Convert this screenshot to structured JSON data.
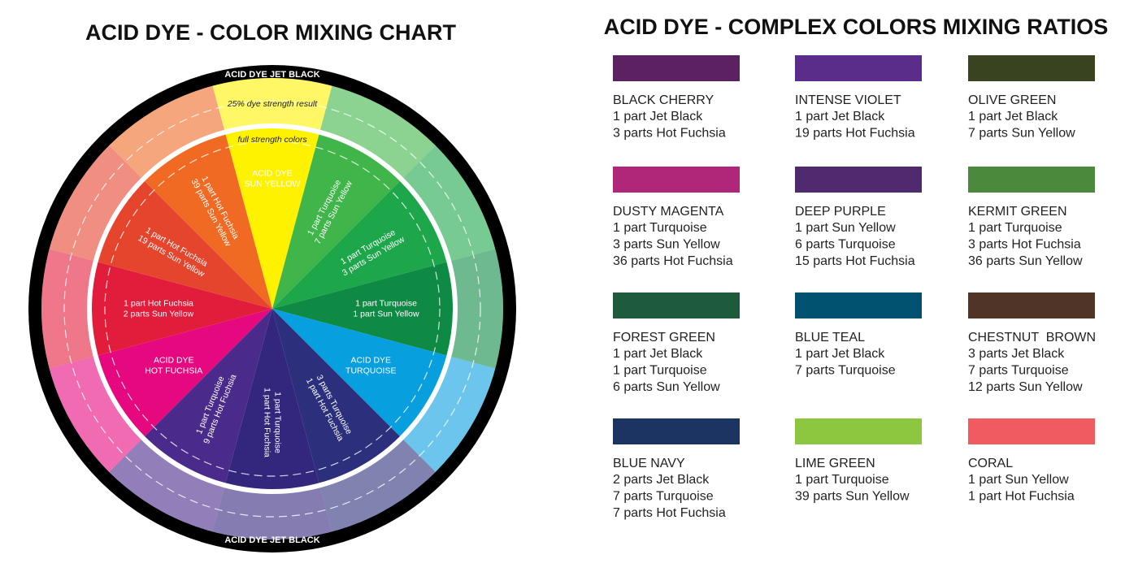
{
  "wheel": {
    "title": "ACID DYE - COLOR MIXING CHART",
    "ring_top": "ACID DYE JET BLACK",
    "ring_bottom": "ACID DYE JET BLACK",
    "outer_note": "25% dye strength result",
    "inner_note": "full strength colors",
    "segments": [
      {
        "lines": [
          "ACID DYE",
          "SUN YELLOW"
        ],
        "color": "#fff200"
      },
      {
        "lines": [
          "1 part Turquoise",
          "7 parts Sun Yellow"
        ],
        "color": "#3fb54a"
      },
      {
        "lines": [
          "1 part Turquoise",
          "3 parts Sun Yellow"
        ],
        "color": "#1da64a"
      },
      {
        "lines": [
          "1 part Turquoise",
          "1 part Sun Yellow"
        ],
        "color": "#0e8a45"
      },
      {
        "lines": [
          "ACID DYE",
          "TURQUOISE"
        ],
        "color": "#089fdf"
      },
      {
        "lines": [
          "3 parts Turquoise",
          "1 part Hot Fuchsia"
        ],
        "color": "#2b2f7c"
      },
      {
        "lines": [
          "1 part Turquoise",
          "1 part Hot Fuchsia"
        ],
        "color": "#33277d"
      },
      {
        "lines": [
          "1 part Turquoise",
          "9 parts Hot Fuchsia"
        ],
        "color": "#4a2a8b"
      },
      {
        "lines": [
          "ACID DYE",
          "HOT FUCHSIA"
        ],
        "color": "#e6087f"
      },
      {
        "lines": [
          "1 part Hot Fuchsia",
          "2 parts Sun Yellow"
        ],
        "color": "#e21d3b"
      },
      {
        "lines": [
          "1 part Hot Fuchsia",
          "19 parts Sun Yellow"
        ],
        "color": "#e6452d"
      },
      {
        "lines": [
          "1 part Hot Fuchsia",
          "39 parts Sun Yellow"
        ],
        "color": "#f06a24"
      }
    ]
  },
  "ratios": {
    "title": "ACID DYE - COMPLEX COLORS MIXING RATIOS",
    "items": [
      {
        "name": "BLACK CHERRY",
        "color": "#5c2160",
        "lines": [
          "1 part Jet Black",
          "3 parts Hot Fuchsia"
        ]
      },
      {
        "name": "INTENSE VIOLET",
        "color": "#5b2d8a",
        "lines": [
          "1 part Jet Black",
          "19 parts Hot Fuchsia"
        ]
      },
      {
        "name": "OLIVE GREEN",
        "color": "#3a4320",
        "lines": [
          "1 part Jet Black",
          "7 parts Sun Yellow"
        ]
      },
      {
        "name": "DUSTY MAGENTA",
        "color": "#b02678",
        "lines": [
          "1 part Turquoise",
          "3 parts Sun Yellow",
          "36 parts Hot Fuchsia"
        ]
      },
      {
        "name": "DEEP PURPLE",
        "color": "#502a6e",
        "lines": [
          "1 part Sun Yellow",
          "6 parts Turquoise",
          "15 parts Hot Fuchsia"
        ]
      },
      {
        "name": "KERMIT GREEN",
        "color": "#4b8a3c",
        "lines": [
          "1 part Turquoise",
          "3 parts Hot Fuchsia",
          "36 parts Sun Yellow"
        ]
      },
      {
        "name": "FOREST GREEN",
        "color": "#1e5a3c",
        "lines": [
          "1 part Jet Black",
          "1 part Turquoise",
          "6 parts Sun Yellow"
        ]
      },
      {
        "name": "BLUE TEAL",
        "color": "#005270",
        "lines": [
          "1 part Jet Black",
          "7 parts Turquoise"
        ]
      },
      {
        "name": "CHESTNUT  BROWN",
        "color": "#4f3427",
        "lines": [
          "3 parts Jet Black",
          "7 parts Turquoise",
          "12 parts Sun Yellow"
        ]
      },
      {
        "name": "BLUE NAVY",
        "color": "#1c3462",
        "lines": [
          "2 parts Jet Black",
          "7 parts Turquoise",
          "7 parts Hot Fuchsia"
        ]
      },
      {
        "name": "LIME GREEN",
        "color": "#8dc63f",
        "lines": [
          "1 part Turquoise",
          "39 parts Sun Yellow"
        ]
      },
      {
        "name": "CORAL",
        "color": "#ef5b5e",
        "lines": [
          "1 part Sun Yellow",
          "1 part Hot Fuchsia"
        ]
      }
    ]
  }
}
